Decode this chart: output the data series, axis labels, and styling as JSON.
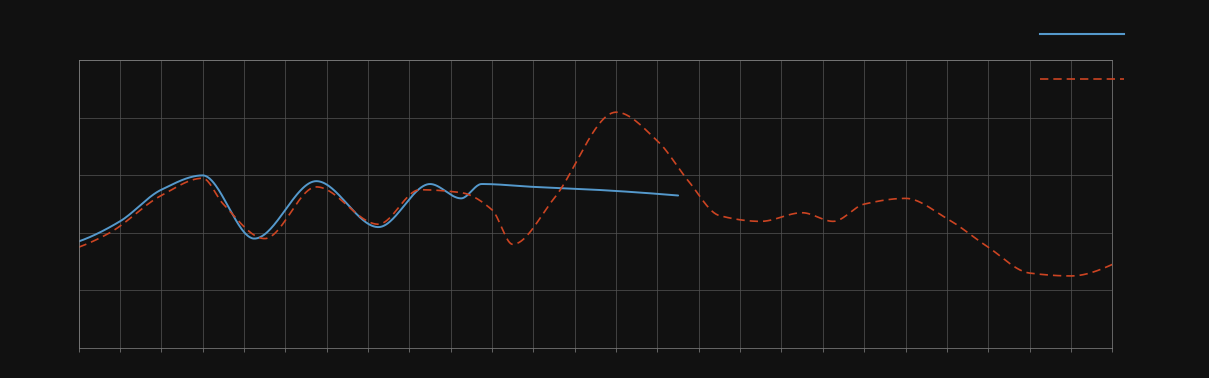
{
  "background_color": "#111111",
  "plot_bg_color": "#111111",
  "grid_color": "#555555",
  "spine_color": "#888888",
  "fig_width": 12.09,
  "fig_height": 3.78,
  "dpi": 100,
  "line1_color": "#5599cc",
  "line2_color": "#cc4422",
  "xlim": [
    0,
    100
  ],
  "ylim": [
    0,
    100
  ],
  "n_x_gridlines": 26,
  "n_y_gridlines": 5,
  "legend_line1_color": "#5599cc",
  "legend_line2_color": "#cc4422"
}
